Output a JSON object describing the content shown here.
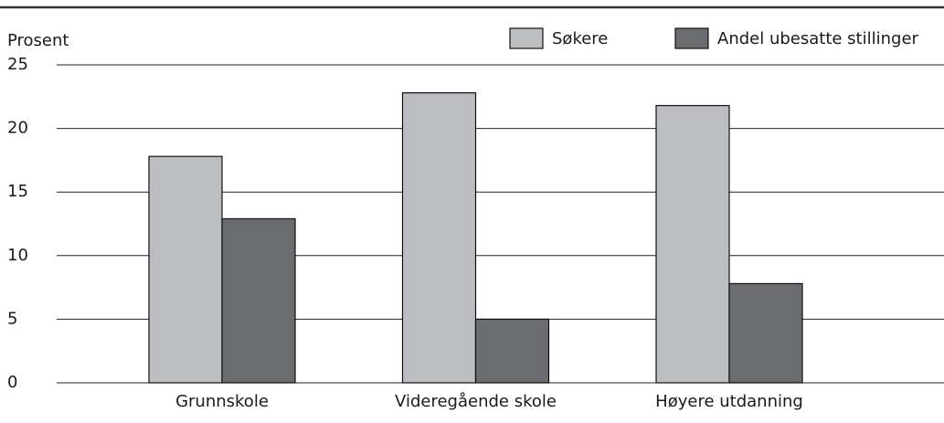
{
  "chart_data": {
    "type": "bar",
    "y_label": "Prosent",
    "categories": [
      "Grunnskole",
      "Videregående skole",
      "Høyere utdanning"
    ],
    "series": [
      {
        "name": "Søkere",
        "color": "#bcbdc1",
        "values": [
          17.8,
          22.8,
          21.8
        ]
      },
      {
        "name": "Andel ubesatte stillinger",
        "color": "#6b6c70",
        "values": [
          12.9,
          5.0,
          7.8
        ]
      }
    ],
    "ylim": [
      0,
      25
    ],
    "yticks": [
      0,
      5,
      10,
      15,
      20,
      25
    ],
    "grid": true,
    "legend": "top-right"
  }
}
